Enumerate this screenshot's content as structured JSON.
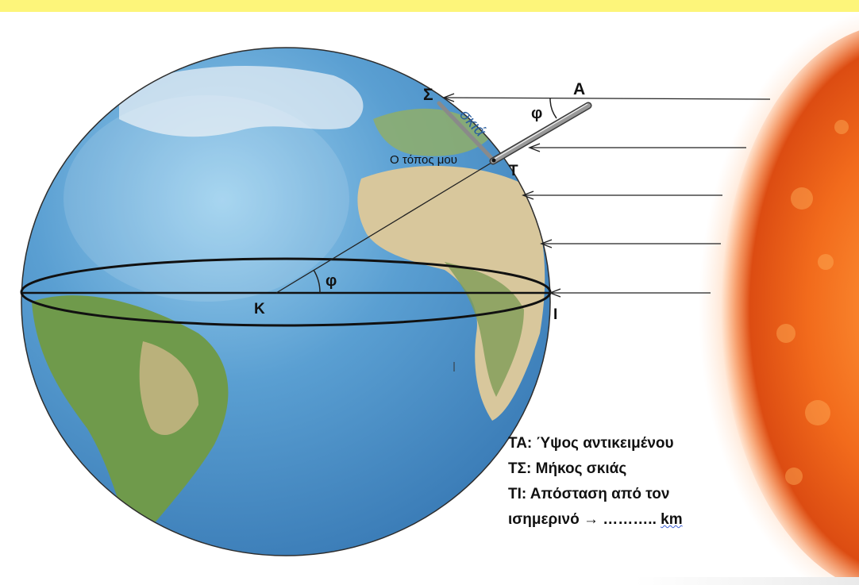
{
  "labels": {
    "shadow_end": "Σ",
    "object_top": "A",
    "angle_top": "φ",
    "angle_center": "φ",
    "shadow": "σκιά",
    "my_location": "Ο τόπος μου",
    "location_point": "T",
    "center": "K",
    "equator_point": "I"
  },
  "legend": {
    "line1": "ΤΑ: Ύψος αντικειμένου",
    "line2": "ΤΣ: Μήκος σκιάς",
    "line3": "ΤΙ: Απόσταση από τον",
    "line4_text": "ισημερινό → ……….. ",
    "line4_unit": "km"
  },
  "colors": {
    "ocean": "#4a8fc9",
    "land": "#c9b98d",
    "sun": "#f06a1a",
    "header_band": "#fdf57a"
  }
}
